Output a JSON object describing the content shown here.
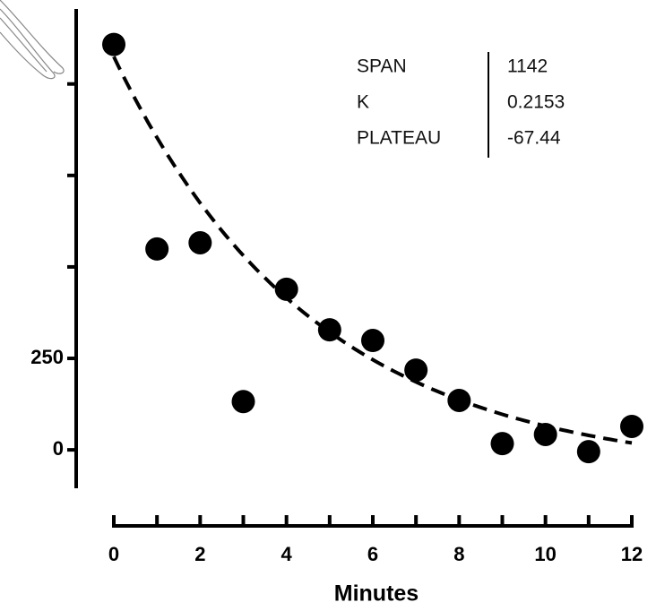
{
  "chart_data": {
    "type": "scatter",
    "x_label": "Minutes",
    "x": [
      0,
      1,
      2,
      3,
      4,
      5,
      6,
      7,
      8,
      9,
      10,
      11,
      12
    ],
    "values": [
      1108,
      549,
      566,
      132,
      439,
      328,
      299,
      218,
      135,
      17,
      42,
      -5,
      64
    ],
    "color": "#000000",
    "xlim": [
      0,
      12
    ],
    "xticks": [
      0,
      2,
      4,
      6,
      8,
      10,
      12
    ],
    "xticks_unlabeled": [
      1,
      3,
      5,
      7,
      9,
      11
    ],
    "ylim": [
      -105,
      1205
    ],
    "yticks": [
      0,
      250
    ],
    "yticks_unlabeled": [
      500,
      750,
      1000
    ],
    "fit": {
      "labels": [
        "SPAN",
        "K",
        "PLATEAU"
      ],
      "values": [
        1142,
        0.2153,
        -67.44
      ]
    }
  }
}
